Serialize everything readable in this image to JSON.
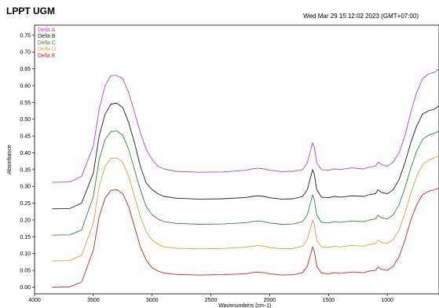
{
  "header": {
    "org": "LPPT UGM",
    "timestamp": "Wed Mar 29 15:12:02 2023 (GMT+07:00)"
  },
  "chart_data": {
    "type": "line",
    "xlabel": "Wavenumbers (cm-1)",
    "ylabel": "Absorbance",
    "xlim": [
      4000,
      560
    ],
    "ylim": [
      -0.02,
      0.78
    ],
    "x_ticks": [
      "4000",
      "3500",
      "3000",
      "2500",
      "2000",
      "1500",
      "1000"
    ],
    "x_tick_values": [
      4000,
      3500,
      3000,
      2500,
      2000,
      1500,
      1000
    ],
    "y_ticks": [
      "0.00",
      "0.05",
      "0.10",
      "0.15",
      "0.20",
      "0.25",
      "0.30",
      "0.35",
      "0.40",
      "0.45",
      "0.50",
      "0.55",
      "0.60",
      "0.65",
      "0.70",
      "0.75"
    ],
    "y_tick_values": [
      0.0,
      0.05,
      0.1,
      0.15,
      0.2,
      0.25,
      0.3,
      0.35,
      0.4,
      0.45,
      0.5,
      0.55,
      0.6,
      0.65,
      0.7,
      0.75
    ],
    "legend_position": "top-left",
    "grid": false,
    "series": [
      {
        "name": "Della A",
        "color": "#c040c0",
        "points": [
          [
            3850,
            0.312
          ],
          [
            3700,
            0.313
          ],
          [
            3600,
            0.33
          ],
          [
            3500,
            0.42
          ],
          [
            3450,
            0.53
          ],
          [
            3400,
            0.6
          ],
          [
            3350,
            0.63
          ],
          [
            3300,
            0.63
          ],
          [
            3250,
            0.62
          ],
          [
            3200,
            0.58
          ],
          [
            3150,
            0.52
          ],
          [
            3100,
            0.46
          ],
          [
            3050,
            0.41
          ],
          [
            3000,
            0.38
          ],
          [
            2950,
            0.36
          ],
          [
            2900,
            0.352
          ],
          [
            2800,
            0.345
          ],
          [
            2600,
            0.342
          ],
          [
            2400,
            0.343
          ],
          [
            2200,
            0.348
          ],
          [
            2150,
            0.352
          ],
          [
            2100,
            0.354
          ],
          [
            2050,
            0.352
          ],
          [
            2000,
            0.348
          ],
          [
            1900,
            0.344
          ],
          [
            1800,
            0.345
          ],
          [
            1720,
            0.35
          ],
          [
            1680,
            0.37
          ],
          [
            1650,
            0.41
          ],
          [
            1635,
            0.43
          ],
          [
            1620,
            0.415
          ],
          [
            1600,
            0.37
          ],
          [
            1560,
            0.35
          ],
          [
            1500,
            0.348
          ],
          [
            1450,
            0.352
          ],
          [
            1400,
            0.35
          ],
          [
            1300,
            0.355
          ],
          [
            1200,
            0.352
          ],
          [
            1150,
            0.358
          ],
          [
            1100,
            0.36
          ],
          [
            1080,
            0.372
          ],
          [
            1050,
            0.365
          ],
          [
            1000,
            0.36
          ],
          [
            950,
            0.372
          ],
          [
            900,
            0.4
          ],
          [
            850,
            0.45
          ],
          [
            800,
            0.52
          ],
          [
            750,
            0.58
          ],
          [
            700,
            0.62
          ],
          [
            650,
            0.635
          ],
          [
            600,
            0.64
          ],
          [
            560,
            0.65
          ]
        ]
      },
      {
        "name": "Della B",
        "color": "#1f1f1f",
        "points": [
          [
            3850,
            0.233
          ],
          [
            3700,
            0.234
          ],
          [
            3600,
            0.25
          ],
          [
            3500,
            0.34
          ],
          [
            3450,
            0.45
          ],
          [
            3400,
            0.515
          ],
          [
            3350,
            0.545
          ],
          [
            3300,
            0.548
          ],
          [
            3250,
            0.535
          ],
          [
            3200,
            0.49
          ],
          [
            3150,
            0.43
          ],
          [
            3100,
            0.36
          ],
          [
            3050,
            0.31
          ],
          [
            3000,
            0.29
          ],
          [
            2950,
            0.278
          ],
          [
            2900,
            0.27
          ],
          [
            2800,
            0.265
          ],
          [
            2600,
            0.262
          ],
          [
            2400,
            0.263
          ],
          [
            2200,
            0.267
          ],
          [
            2150,
            0.27
          ],
          [
            2100,
            0.272
          ],
          [
            2050,
            0.27
          ],
          [
            2000,
            0.266
          ],
          [
            1900,
            0.262
          ],
          [
            1800,
            0.263
          ],
          [
            1720,
            0.27
          ],
          [
            1680,
            0.29
          ],
          [
            1650,
            0.33
          ],
          [
            1635,
            0.35
          ],
          [
            1620,
            0.335
          ],
          [
            1600,
            0.29
          ],
          [
            1560,
            0.268
          ],
          [
            1500,
            0.266
          ],
          [
            1450,
            0.27
          ],
          [
            1400,
            0.268
          ],
          [
            1300,
            0.272
          ],
          [
            1200,
            0.27
          ],
          [
            1150,
            0.276
          ],
          [
            1100,
            0.278
          ],
          [
            1080,
            0.29
          ],
          [
            1050,
            0.282
          ],
          [
            1000,
            0.278
          ],
          [
            950,
            0.29
          ],
          [
            900,
            0.32
          ],
          [
            850,
            0.37
          ],
          [
            800,
            0.43
          ],
          [
            750,
            0.48
          ],
          [
            700,
            0.515
          ],
          [
            650,
            0.525
          ],
          [
            600,
            0.53
          ],
          [
            560,
            0.54
          ]
        ]
      },
      {
        "name": "Della C",
        "color": "#2e8b3a",
        "points": [
          [
            3850,
            0.155
          ],
          [
            3700,
            0.156
          ],
          [
            3600,
            0.17
          ],
          [
            3500,
            0.27
          ],
          [
            3450,
            0.38
          ],
          [
            3400,
            0.44
          ],
          [
            3350,
            0.463
          ],
          [
            3300,
            0.465
          ],
          [
            3250,
            0.452
          ],
          [
            3200,
            0.41
          ],
          [
            3150,
            0.35
          ],
          [
            3100,
            0.29
          ],
          [
            3050,
            0.24
          ],
          [
            3000,
            0.215
          ],
          [
            2950,
            0.203
          ],
          [
            2900,
            0.195
          ],
          [
            2800,
            0.19
          ],
          [
            2600,
            0.187
          ],
          [
            2400,
            0.188
          ],
          [
            2200,
            0.192
          ],
          [
            2150,
            0.195
          ],
          [
            2100,
            0.197
          ],
          [
            2050,
            0.195
          ],
          [
            2000,
            0.191
          ],
          [
            1900,
            0.187
          ],
          [
            1800,
            0.188
          ],
          [
            1720,
            0.195
          ],
          [
            1680,
            0.215
          ],
          [
            1650,
            0.255
          ],
          [
            1635,
            0.275
          ],
          [
            1620,
            0.26
          ],
          [
            1600,
            0.215
          ],
          [
            1560,
            0.193
          ],
          [
            1500,
            0.191
          ],
          [
            1450,
            0.195
          ],
          [
            1400,
            0.193
          ],
          [
            1300,
            0.197
          ],
          [
            1200,
            0.195
          ],
          [
            1150,
            0.2
          ],
          [
            1100,
            0.203
          ],
          [
            1080,
            0.214
          ],
          [
            1050,
            0.207
          ],
          [
            1000,
            0.203
          ],
          [
            950,
            0.215
          ],
          [
            900,
            0.245
          ],
          [
            850,
            0.295
          ],
          [
            800,
            0.355
          ],
          [
            750,
            0.405
          ],
          [
            700,
            0.44
          ],
          [
            650,
            0.452
          ],
          [
            600,
            0.458
          ],
          [
            560,
            0.465
          ]
        ]
      },
      {
        "name": "Della D",
        "color": "#e0a030",
        "points": [
          [
            3850,
            0.078
          ],
          [
            3700,
            0.079
          ],
          [
            3600,
            0.095
          ],
          [
            3500,
            0.19
          ],
          [
            3450,
            0.3
          ],
          [
            3400,
            0.36
          ],
          [
            3350,
            0.383
          ],
          [
            3300,
            0.385
          ],
          [
            3250,
            0.372
          ],
          [
            3200,
            0.33
          ],
          [
            3150,
            0.27
          ],
          [
            3100,
            0.21
          ],
          [
            3050,
            0.165
          ],
          [
            3000,
            0.14
          ],
          [
            2950,
            0.128
          ],
          [
            2900,
            0.12
          ],
          [
            2800,
            0.116
          ],
          [
            2600,
            0.114
          ],
          [
            2400,
            0.115
          ],
          [
            2200,
            0.119
          ],
          [
            2150,
            0.122
          ],
          [
            2100,
            0.124
          ],
          [
            2050,
            0.122
          ],
          [
            2000,
            0.118
          ],
          [
            1900,
            0.114
          ],
          [
            1800,
            0.115
          ],
          [
            1720,
            0.122
          ],
          [
            1680,
            0.142
          ],
          [
            1650,
            0.18
          ],
          [
            1635,
            0.2
          ],
          [
            1620,
            0.186
          ],
          [
            1600,
            0.14
          ],
          [
            1560,
            0.12
          ],
          [
            1500,
            0.118
          ],
          [
            1450,
            0.122
          ],
          [
            1400,
            0.12
          ],
          [
            1300,
            0.124
          ],
          [
            1200,
            0.122
          ],
          [
            1150,
            0.127
          ],
          [
            1100,
            0.13
          ],
          [
            1080,
            0.14
          ],
          [
            1050,
            0.133
          ],
          [
            1000,
            0.13
          ],
          [
            950,
            0.142
          ],
          [
            900,
            0.17
          ],
          [
            850,
            0.22
          ],
          [
            800,
            0.28
          ],
          [
            750,
            0.33
          ],
          [
            700,
            0.365
          ],
          [
            650,
            0.378
          ],
          [
            600,
            0.385
          ],
          [
            560,
            0.392
          ]
        ]
      },
      {
        "name": "Della E",
        "color": "#cc2222",
        "points": [
          [
            3850,
            0.0
          ],
          [
            3700,
            0.001
          ],
          [
            3600,
            0.015
          ],
          [
            3500,
            0.11
          ],
          [
            3450,
            0.21
          ],
          [
            3400,
            0.265
          ],
          [
            3350,
            0.288
          ],
          [
            3300,
            0.29
          ],
          [
            3250,
            0.278
          ],
          [
            3200,
            0.24
          ],
          [
            3150,
            0.18
          ],
          [
            3100,
            0.12
          ],
          [
            3050,
            0.08
          ],
          [
            3000,
            0.058
          ],
          [
            2950,
            0.048
          ],
          [
            2900,
            0.042
          ],
          [
            2800,
            0.038
          ],
          [
            2600,
            0.036
          ],
          [
            2400,
            0.037
          ],
          [
            2200,
            0.04
          ],
          [
            2150,
            0.043
          ],
          [
            2100,
            0.045
          ],
          [
            2050,
            0.043
          ],
          [
            2000,
            0.04
          ],
          [
            1900,
            0.036
          ],
          [
            1800,
            0.037
          ],
          [
            1720,
            0.043
          ],
          [
            1680,
            0.062
          ],
          [
            1650,
            0.1
          ],
          [
            1635,
            0.12
          ],
          [
            1620,
            0.106
          ],
          [
            1600,
            0.062
          ],
          [
            1560,
            0.042
          ],
          [
            1500,
            0.04
          ],
          [
            1450,
            0.043
          ],
          [
            1400,
            0.041
          ],
          [
            1300,
            0.045
          ],
          [
            1200,
            0.043
          ],
          [
            1150,
            0.048
          ],
          [
            1100,
            0.05
          ],
          [
            1080,
            0.06
          ],
          [
            1050,
            0.053
          ],
          [
            1000,
            0.05
          ],
          [
            950,
            0.062
          ],
          [
            900,
            0.09
          ],
          [
            850,
            0.14
          ],
          [
            800,
            0.2
          ],
          [
            750,
            0.245
          ],
          [
            700,
            0.275
          ],
          [
            650,
            0.285
          ],
          [
            600,
            0.29
          ],
          [
            560,
            0.295
          ]
        ]
      }
    ]
  }
}
